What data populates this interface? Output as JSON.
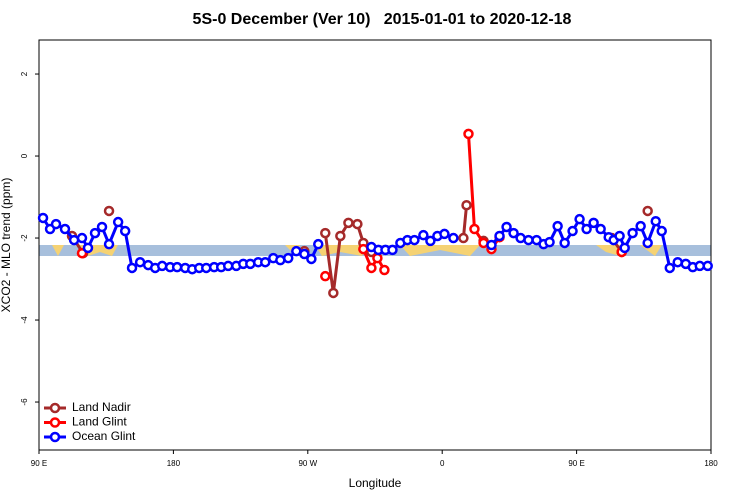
{
  "chart_data": {
    "type": "line",
    "title": "5S-0 December (Ver 10)   2015-01-01 to 2020-12-18",
    "xlabel": "Longitude",
    "ylabel": "XCO2 - MLO trend (ppm)",
    "xlim": [
      90,
      540
    ],
    "ylim": [
      -7.17,
      2.83
    ],
    "xticks": [
      {
        "value": 90,
        "label": "90 E"
      },
      180,
      {
        "value": 270,
        "label": "90 W"
      },
      {
        "value": 360,
        "label": "0"
      },
      {
        "value": 450,
        "label": "90 E"
      },
      {
        "value": 540,
        "label": "180"
      }
    ],
    "yticks": [
      2,
      0,
      -2,
      -4,
      -6
    ],
    "legend": "bottom-left",
    "series": [
      {
        "name": "Land Nadir",
        "color": "#a52a2a",
        "x": [
          112.1,
          119.5,
          null,
          136.9,
          null,
          267.7,
          null,
          281.7,
          287.1,
          291.8,
          297.2,
          303.2,
          307.2,
          312.6,
          null,
          374.2,
          376.3,
          null,
          387.7,
          null,
          473.5,
          480.2,
          null,
          497.6
        ],
        "values": [
          -1.95,
          -2.37,
          null,
          -1.34,
          null,
          -2.32,
          null,
          -1.88,
          -3.34,
          -1.95,
          -1.63,
          -1.66,
          -2.12,
          -2.34,
          null,
          -2.0,
          -1.2,
          null,
          -2.07,
          null,
          -2.0,
          -2.34,
          null,
          -1.34
        ]
      },
      {
        "name": "Land Glint",
        "color": "#ff0000",
        "x": [
          118.8,
          null,
          281.7,
          null,
          307.2,
          312.6,
          316.6,
          321.3,
          null,
          377.6,
          381.6,
          387.7,
          393.0,
          398.4,
          null,
          480.2
        ],
        "values": [
          -2.37,
          null,
          -2.93,
          null,
          -2.27,
          -2.73,
          -2.49,
          -2.78,
          null,
          0.54,
          -1.78,
          -2.12,
          -2.27,
          -1.98,
          null,
          -2.34
        ]
      },
      {
        "name": "Ocean Glint",
        "color": "#0000ff",
        "x": [
          92.7,
          97.4,
          101.4,
          107.4,
          113.5,
          118.8,
          122.8,
          127.5,
          132.2,
          136.9,
          143.0,
          147.7,
          152.3,
          157.7,
          163.1,
          167.8,
          172.5,
          177.8,
          182.5,
          187.9,
          192.6,
          197.3,
          202.0,
          207.3,
          212.0,
          216.7,
          222.1,
          226.8,
          231.5,
          236.8,
          241.5,
          246.9,
          251.6,
          256.9,
          262.3,
          267.7,
          272.4,
          277.0,
          null,
          312.6,
          317.3,
          322.0,
          326.7,
          332.0,
          336.7,
          341.4,
          347.4,
          352.1,
          356.8,
          361.5,
          367.5,
          null,
          393.0,
          398.4,
          403.1,
          407.8,
          412.5,
          417.8,
          423.2,
          427.9,
          431.9,
          437.3,
          442.0,
          447.3,
          452.0,
          456.7,
          461.4,
          466.1,
          471.5,
          474.8,
          478.8,
          482.2,
          487.5,
          492.9,
          497.6,
          503.0,
          507.0,
          512.4,
          517.7,
          523.1,
          527.8,
          532.5,
          537.8
        ],
        "values": [
          -1.51,
          -1.78,
          -1.66,
          -1.78,
          -2.05,
          -2.0,
          -2.24,
          -1.88,
          -1.73,
          -2.15,
          -1.61,
          -1.83,
          -2.73,
          -2.59,
          -2.66,
          -2.73,
          -2.68,
          -2.71,
          -2.71,
          -2.73,
          -2.76,
          -2.73,
          -2.73,
          -2.71,
          -2.71,
          -2.68,
          -2.68,
          -2.63,
          -2.63,
          -2.59,
          -2.59,
          -2.49,
          -2.54,
          -2.49,
          -2.32,
          -2.39,
          -2.51,
          -2.15,
          null,
          -2.22,
          -2.29,
          -2.29,
          -2.29,
          -2.12,
          -2.05,
          -2.05,
          -1.93,
          -2.07,
          -1.95,
          -1.9,
          -2.0,
          null,
          -2.17,
          -1.95,
          -1.73,
          -1.88,
          -2.0,
          -2.05,
          -2.05,
          -2.15,
          -2.1,
          -1.71,
          -2.12,
          -1.83,
          -1.54,
          -1.78,
          -1.63,
          -1.78,
          -1.98,
          -2.05,
          -1.95,
          -2.24,
          -1.88,
          -1.71,
          -2.12,
          -1.59,
          -1.83,
          -2.73,
          -2.59,
          -2.63,
          -2.71,
          -2.68,
          -2.68
        ]
      }
    ]
  }
}
